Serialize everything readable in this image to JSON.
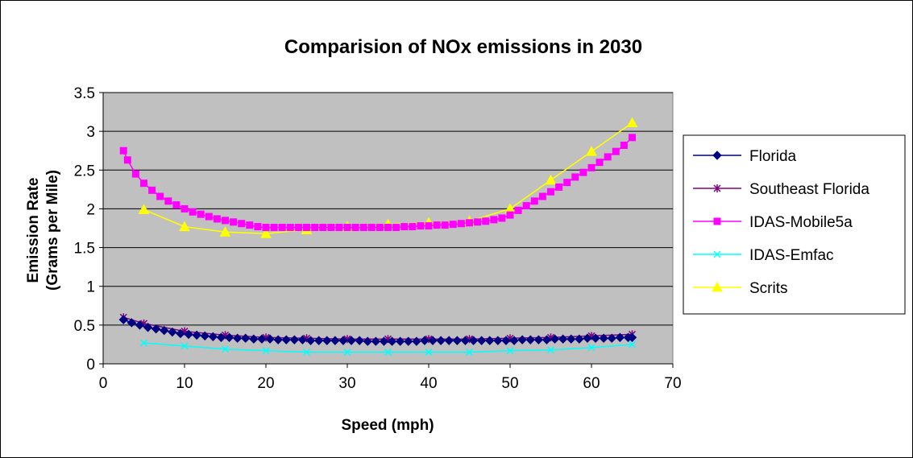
{
  "chart_data": {
    "type": "line",
    "title": "Comparision of NOx emissions in 2030",
    "xlabel": "Speed (mph)",
    "ylabel_line1": "Emission Rate",
    "ylabel_line2": "(Grams per Mile)",
    "xlim": [
      0,
      70
    ],
    "ylim": [
      0,
      3.5
    ],
    "xticks": [
      0,
      10,
      20,
      30,
      40,
      50,
      60,
      70
    ],
    "yticks": [
      0,
      0.5,
      1,
      1.5,
      2,
      2.5,
      3,
      3.5
    ],
    "grid": "horizontal",
    "legend_position": "right",
    "plot_background": "#C0C0C0",
    "series": [
      {
        "name": "Florida",
        "color": "#000080",
        "marker": "diamond",
        "x": [
          2.5,
          3.5,
          4.5,
          5.5,
          6.5,
          7.5,
          8.5,
          9.5,
          10.5,
          11.5,
          12.5,
          13.5,
          14.5,
          15.5,
          16.5,
          17.5,
          18.5,
          19.5,
          20.5,
          21.5,
          22.5,
          23.5,
          24.5,
          25.5,
          26.5,
          27.5,
          28.5,
          29.5,
          30.5,
          31.5,
          32.5,
          33.5,
          34.5,
          35.5,
          36.5,
          37.5,
          38.5,
          39.5,
          40.5,
          41.5,
          42.5,
          43.5,
          44.5,
          45.5,
          46.5,
          47.5,
          48.5,
          49.5,
          50.5,
          51.5,
          52.5,
          53.5,
          54.5,
          55.5,
          56.5,
          57.5,
          58.5,
          59.5,
          60.5,
          61.5,
          62.5,
          63.5,
          64.5,
          65
        ],
        "y": [
          0.57,
          0.53,
          0.5,
          0.47,
          0.45,
          0.43,
          0.41,
          0.39,
          0.38,
          0.37,
          0.36,
          0.35,
          0.34,
          0.34,
          0.33,
          0.33,
          0.32,
          0.32,
          0.32,
          0.31,
          0.31,
          0.31,
          0.31,
          0.3,
          0.3,
          0.3,
          0.3,
          0.3,
          0.3,
          0.3,
          0.29,
          0.29,
          0.29,
          0.29,
          0.29,
          0.29,
          0.29,
          0.3,
          0.3,
          0.3,
          0.3,
          0.3,
          0.3,
          0.3,
          0.3,
          0.3,
          0.3,
          0.3,
          0.3,
          0.31,
          0.31,
          0.31,
          0.31,
          0.32,
          0.32,
          0.32,
          0.32,
          0.33,
          0.33,
          0.33,
          0.33,
          0.34,
          0.34,
          0.34
        ]
      },
      {
        "name": "Southeast Florida",
        "color": "#800080",
        "marker": "star",
        "x": [
          2.5,
          5,
          10,
          15,
          20,
          25,
          30,
          35,
          40,
          45,
          50,
          55,
          60,
          65
        ],
        "y": [
          0.6,
          0.52,
          0.42,
          0.37,
          0.34,
          0.33,
          0.32,
          0.32,
          0.32,
          0.32,
          0.33,
          0.34,
          0.36,
          0.38
        ]
      },
      {
        "name": "IDAS-Mobile5a",
        "color": "#FF00FF",
        "marker": "square",
        "x": [
          2.5,
          3,
          4,
          5,
          6,
          7,
          8,
          9,
          10,
          11,
          12,
          13,
          14,
          15,
          16,
          17,
          18,
          19,
          20,
          21,
          22,
          23,
          24,
          25,
          26,
          27,
          28,
          29,
          30,
          31,
          32,
          33,
          34,
          35,
          36,
          37,
          38,
          39,
          40,
          41,
          42,
          43,
          44,
          45,
          46,
          47,
          48,
          49,
          50,
          51,
          52,
          53,
          54,
          55,
          56,
          57,
          58,
          59,
          60,
          61,
          62,
          63,
          64,
          65
        ],
        "y": [
          2.75,
          2.63,
          2.45,
          2.33,
          2.24,
          2.16,
          2.1,
          2.05,
          2.0,
          1.96,
          1.93,
          1.9,
          1.87,
          1.85,
          1.83,
          1.81,
          1.79,
          1.77,
          1.76,
          1.76,
          1.76,
          1.76,
          1.76,
          1.76,
          1.76,
          1.76,
          1.76,
          1.76,
          1.76,
          1.76,
          1.76,
          1.76,
          1.76,
          1.76,
          1.76,
          1.77,
          1.77,
          1.78,
          1.78,
          1.79,
          1.79,
          1.8,
          1.81,
          1.82,
          1.83,
          1.84,
          1.86,
          1.88,
          1.92,
          1.98,
          2.04,
          2.1,
          2.16,
          2.22,
          2.28,
          2.34,
          2.41,
          2.47,
          2.53,
          2.6,
          2.67,
          2.74,
          2.82,
          2.92
        ]
      },
      {
        "name": "IDAS-Emfac",
        "color": "#00FFFF",
        "marker": "x",
        "x": [
          5,
          10,
          15,
          20,
          25,
          30,
          35,
          40,
          45,
          50,
          55,
          60,
          65
        ],
        "y": [
          0.27,
          0.23,
          0.19,
          0.17,
          0.15,
          0.15,
          0.15,
          0.15,
          0.15,
          0.17,
          0.18,
          0.21,
          0.25
        ]
      },
      {
        "name": "Scrits",
        "color": "#FFFF00",
        "marker": "triangle",
        "x": [
          5,
          10,
          15,
          20,
          25,
          30,
          35,
          40,
          45,
          50,
          55,
          60,
          65
        ],
        "y": [
          1.99,
          1.77,
          1.7,
          1.68,
          1.73,
          1.77,
          1.8,
          1.82,
          1.84,
          2.0,
          2.37,
          2.74,
          3.11
        ]
      }
    ]
  }
}
